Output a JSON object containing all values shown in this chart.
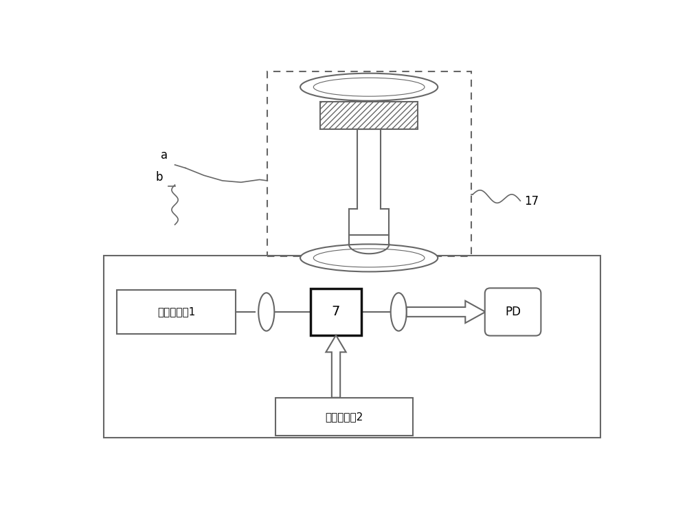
{
  "bg_color": "#ffffff",
  "label_a": "a",
  "label_b": "b",
  "label_17": "17",
  "label_7": "7",
  "label_probe_laser": "探测激光器1",
  "label_pump_laser": "抽运激光器2",
  "label_pd": "PD",
  "line_color": "#666666",
  "thin_lw": 1.2,
  "med_lw": 1.5,
  "thick_lw": 2.5
}
